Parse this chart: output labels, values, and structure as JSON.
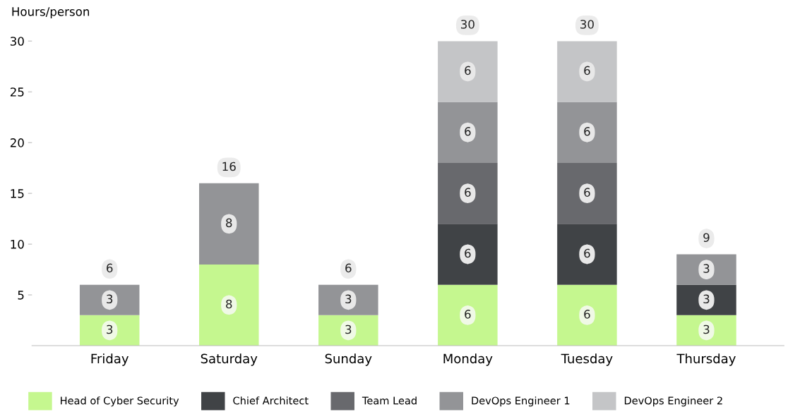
{
  "chart_data": {
    "type": "bar",
    "stacked": true,
    "ylabel": "Hours/person",
    "categories": [
      "Friday",
      "Saturday",
      "Sunday",
      "Monday",
      "Tuesday",
      "Thursday"
    ],
    "series": [
      {
        "name": "Head of Cyber Security",
        "color": "#c5f78f",
        "values": [
          3,
          8,
          3,
          6,
          6,
          3
        ]
      },
      {
        "name": "Chief Architect",
        "color": "#404346",
        "values": [
          null,
          null,
          null,
          6,
          6,
          3
        ]
      },
      {
        "name": "Team Lead",
        "color": "#68696d",
        "values": [
          null,
          null,
          null,
          6,
          6,
          null
        ]
      },
      {
        "name": "DevOps Engineer 1",
        "color": "#939497",
        "values": [
          3,
          8,
          3,
          6,
          6,
          3
        ]
      },
      {
        "name": "DevOps Engineer 2",
        "color": "#c4c5c7",
        "values": [
          null,
          null,
          null,
          6,
          6,
          null
        ]
      }
    ],
    "totals": [
      "6",
      "16",
      "6",
      "30",
      "30",
      "9"
    ],
    "data_labels": true,
    "ylim": [
      0,
      30
    ],
    "yticks": [
      5,
      10,
      15,
      20,
      25,
      30
    ],
    "grid": false,
    "legend": "bottom"
  }
}
